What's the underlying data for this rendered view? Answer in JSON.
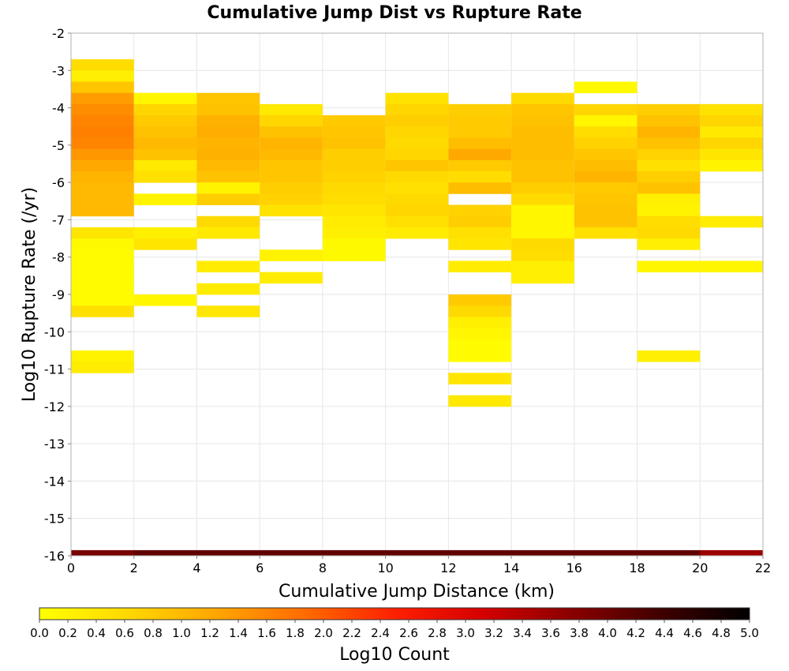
{
  "chart_data": {
    "type": "heatmap",
    "title": "Cumulative Jump Dist vs Rupture Rate",
    "xlabel": "Cumulative Jump Distance (km)",
    "ylabel": "Log10 Rupture Rate (/yr)",
    "colorbar_label": "Log10 Count",
    "xlim": [
      0,
      22
    ],
    "ylim": [
      -16,
      -2
    ],
    "x_ticks": [
      "0",
      "2",
      "4",
      "6",
      "8",
      "10",
      "12",
      "14",
      "16",
      "18",
      "20",
      "22"
    ],
    "y_ticks": [
      "-2",
      "-3",
      "-4",
      "-5",
      "-6",
      "-7",
      "-8",
      "-9",
      "-10",
      "-11",
      "-12",
      "-13",
      "-14",
      "-15",
      "-16"
    ],
    "colorbar_ticks": [
      "0.0",
      "0.2",
      "0.4",
      "0.6",
      "0.8",
      "1.0",
      "1.2",
      "1.4",
      "1.6",
      "1.8",
      "2.0",
      "2.2",
      "2.4",
      "2.6",
      "2.8",
      "3.0",
      "3.2",
      "3.4",
      "3.6",
      "3.8",
      "4.0",
      "4.2",
      "4.4",
      "4.6",
      "4.8",
      "5.0"
    ],
    "colorbar_range": [
      0,
      5
    ],
    "colormap": [
      "#ffff00",
      "#ffd800",
      "#ffa500",
      "#ff6a00",
      "#ff2000",
      "#d40000",
      "#8a0000",
      "#400000",
      "#000000"
    ],
    "grid": true,
    "x_bin_width": 2,
    "y_bin_height": 0.3,
    "columns": [
      {
        "x": 1,
        "y_top": -2.7,
        "values": [
          0.55,
          0.25,
          0.85,
          1.35,
          1.5,
          1.6,
          1.65,
          1.6,
          1.4,
          1.2,
          1.05,
          1.0,
          1.0,
          1.0,
          null,
          0.4,
          0.1,
          0.05,
          0.05,
          0.05,
          0.05,
          0.05,
          0.5,
          null,
          null,
          null,
          0.2,
          0.3
        ]
      },
      {
        "x": 3,
        "y_top": -3.6,
        "values": [
          0.15,
          0.65,
          0.8,
          0.9,
          1.0,
          0.9,
          0.35,
          0.5,
          null,
          0.2,
          null,
          null,
          0.25,
          0.4,
          null,
          null,
          null,
          null,
          0.15
        ]
      },
      {
        "x": 5,
        "y_top": -3.6,
        "values": [
          0.85,
          0.9,
          1.1,
          1.15,
          1.05,
          1.1,
          1.0,
          0.9,
          0.2,
          0.75,
          null,
          0.6,
          0.35,
          null,
          null,
          0.3,
          null,
          0.3,
          null,
          0.4
        ]
      },
      {
        "x": 7,
        "y_top": -3.9,
        "values": [
          0.35,
          0.65,
          0.9,
          1.05,
          1.0,
          0.85,
          0.85,
          0.75,
          0.7,
          0.45,
          null,
          null,
          null,
          0.2,
          null,
          0.3
        ]
      },
      {
        "x": 9,
        "y_top": -4.2,
        "values": [
          0.8,
          0.85,
          0.9,
          0.75,
          0.75,
          0.7,
          0.6,
          0.55,
          0.4,
          0.3,
          0.25,
          0.1,
          0.1
        ]
      },
      {
        "x": 11,
        "y_top": -3.6,
        "values": [
          0.45,
          0.65,
          0.75,
          0.65,
          0.6,
          0.65,
          0.85,
          0.6,
          0.5,
          0.6,
          0.65,
          0.5,
          0.3
        ]
      },
      {
        "x": 13,
        "y_top": -3.9,
        "values": [
          0.75,
          0.8,
          0.8,
          0.95,
          1.2,
          0.8,
          0.55,
          0.95,
          null,
          0.7,
          0.75,
          0.5,
          0.4,
          null,
          0.3,
          null,
          null,
          0.8,
          0.6,
          0.25,
          0.15,
          0.05,
          0.05,
          null,
          0.4,
          null,
          0.35
        ]
      },
      {
        "x": 15,
        "y_top": -3.6,
        "values": [
          0.6,
          0.85,
          0.9,
          0.95,
          0.95,
          0.95,
          0.9,
          0.9,
          0.75,
          0.6,
          0.15,
          0.15,
          0.15,
          0.6,
          0.55,
          0.25,
          0.25
        ]
      },
      {
        "x": 17,
        "y_top": -3.3,
        "values": [
          0.1,
          null,
          0.65,
          0.15,
          0.55,
          0.7,
          0.85,
          0.95,
          1.05,
          0.8,
          0.85,
          0.9,
          0.9,
          0.5
        ]
      },
      {
        "x": 19,
        "y_top": -3.9,
        "values": [
          0.75,
          0.9,
          1.05,
          0.9,
          0.7,
          0.5,
          0.75,
          0.9,
          0.25,
          0.2,
          0.55,
          0.6,
          0.25,
          null,
          0.15,
          null,
          null,
          null,
          null,
          null,
          null,
          null,
          0.25
        ]
      },
      {
        "x": 21,
        "y_top": -3.9,
        "values": [
          0.45,
          0.65,
          0.35,
          0.65,
          0.4,
          0.2,
          null,
          null,
          null,
          null,
          0.3,
          null,
          null,
          null,
          0.15
        ]
      }
    ],
    "bottom_row": {
      "y_top": -15.85,
      "values": [
        3.9,
        4.1,
        4.1,
        4.1,
        4.1,
        4.1,
        4.1,
        4.1,
        4.1,
        4.1,
        3.6
      ]
    }
  }
}
